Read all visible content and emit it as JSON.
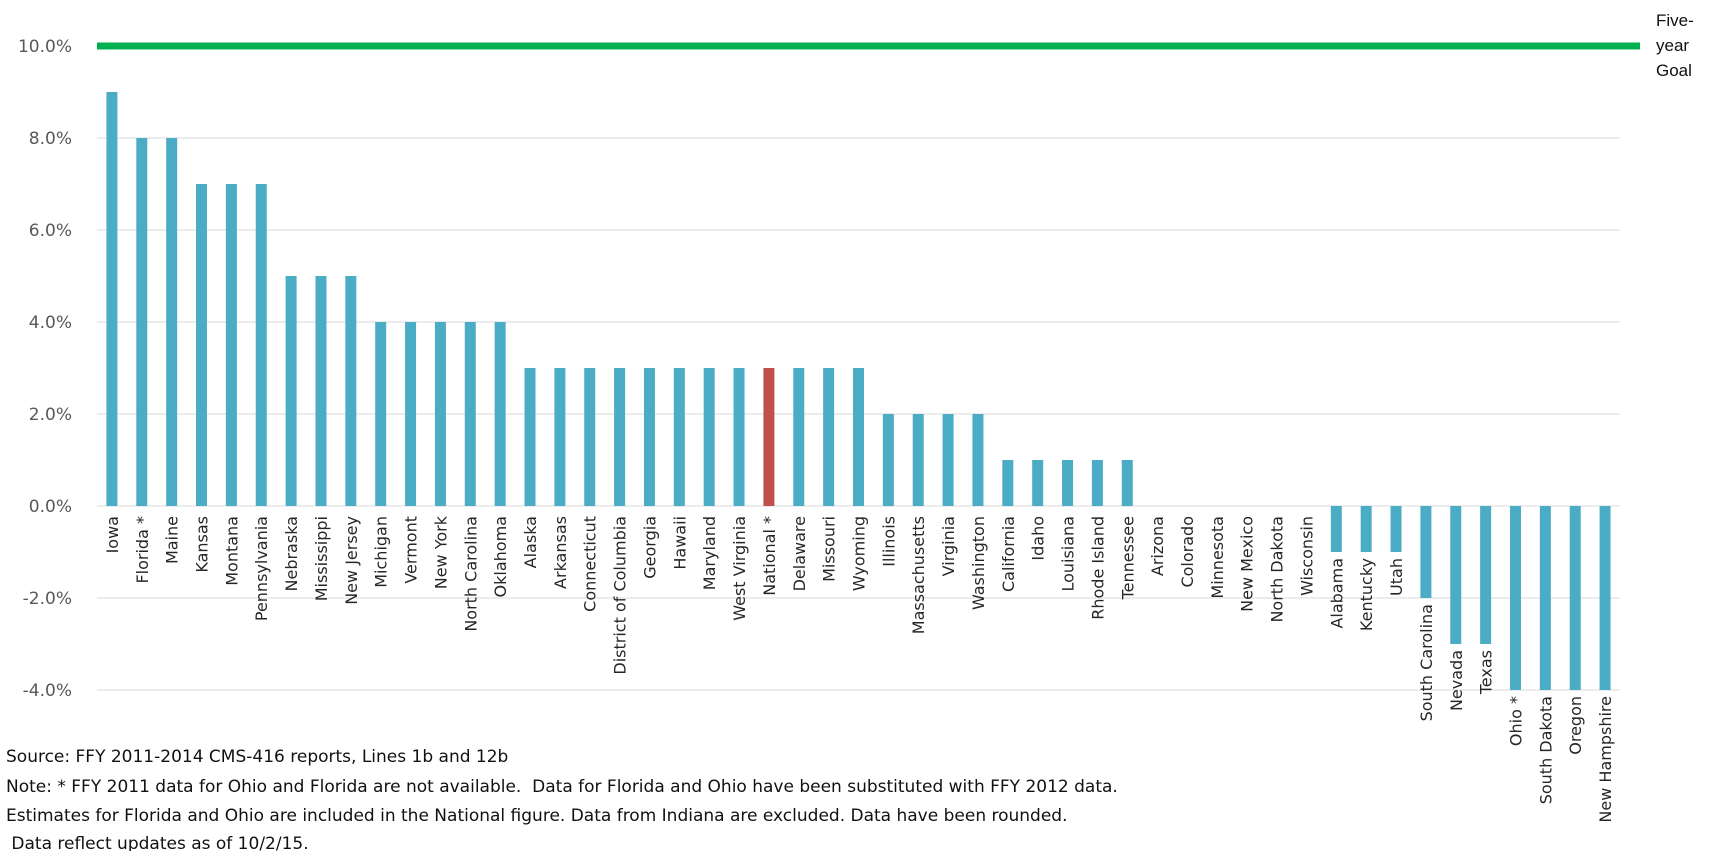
{
  "chart_data": {
    "type": "bar",
    "title": "",
    "xlabel": "",
    "ylabel": "",
    "ylim": [
      -4.0,
      10.0
    ],
    "ytick_values": [
      -4.0,
      -2.0,
      0.0,
      2.0,
      4.0,
      6.0,
      8.0,
      10.0
    ],
    "ytick_labels": [
      "-4.0%",
      "-2.0%",
      "0.0%",
      "2.0%",
      "4.0%",
      "6.0%",
      "8.0%",
      "10.0%"
    ],
    "grid": true,
    "categories": [
      "Iowa",
      "Florida *",
      "Maine",
      "Kansas",
      "Montana",
      "Pennsylvania",
      "Nebraska",
      "Mississippi",
      "New Jersey",
      "Michigan",
      "Vermont",
      "New York",
      "North Carolina",
      "Oklahoma",
      "Alaska",
      "Arkansas",
      "Connecticut",
      "District of Columbia",
      "Georgia",
      "Hawaii",
      "Maryland",
      "West Virginia",
      "National *",
      "Delaware",
      "Missouri",
      "Wyoming",
      "Illinois",
      "Massachusetts",
      "Virginia",
      "Washington",
      "California",
      "Idaho",
      "Louisiana",
      "Rhode Island",
      "Tennessee",
      "Arizona",
      "Colorado",
      "Minnesota",
      "New Mexico",
      "North Dakota",
      "Wisconsin",
      "Alabama",
      "Kentucky",
      "Utah",
      "South Carolina",
      "Nevada",
      "Texas",
      "Ohio *",
      "South Dakota",
      "Oregon",
      "New Hampshire"
    ],
    "values": [
      9,
      8,
      8,
      7,
      7,
      7,
      5,
      5,
      5,
      4,
      4,
      4,
      4,
      4,
      3,
      3,
      3,
      3,
      3,
      3,
      3,
      3,
      3,
      3,
      3,
      3,
      2,
      2,
      2,
      2,
      1,
      1,
      1,
      1,
      1,
      0,
      0,
      0,
      0,
      0,
      0,
      -1,
      -1,
      -1,
      -2,
      -3,
      -3,
      -4,
      -4,
      -4,
      -4
    ],
    "highlight_category": "National *",
    "bar_color": "#4BACC6",
    "highlight_color": "#C0504D",
    "goal": {
      "value": 10.0,
      "label": "Five-year Goal",
      "label_lines": [
        "Five-",
        "year",
        "Goal"
      ],
      "color": "#00B050"
    }
  },
  "footnotes": [
    "Source: FFY 2011-2014 CMS-416 reports, Lines 1b and 12b",
    "Note: * FFY 2011 data for Ohio and Florida are not available.  Data for Florida and Ohio have been substituted with FFY 2012 data.",
    "Estimates for Florida and Ohio are included in the National figure. Data from Indiana are excluded. Data have been rounded.",
    " Data reflect updates as of 10/2/15."
  ]
}
